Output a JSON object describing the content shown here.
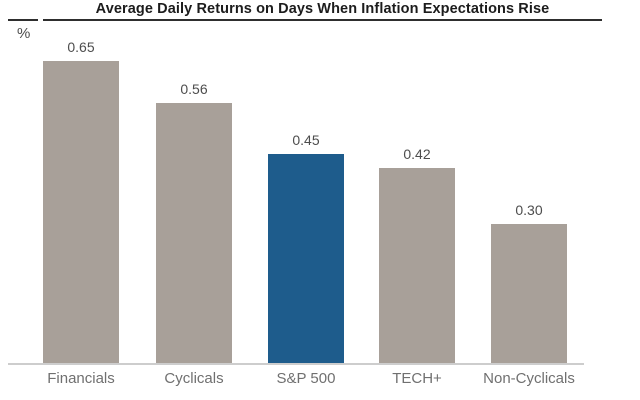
{
  "header": {
    "title": "Average Daily Returns on Days When Inflation Expectations Rise"
  },
  "axis": {
    "unit_label": "%"
  },
  "colors": {
    "background": "#ffffff",
    "bar_default": "#a8a099",
    "bar_highlight": "#1e5c8c",
    "title_text": "#1c1c1c",
    "title_rule": "#2e2e2e",
    "baseline": "#cdcdcd",
    "value_label": "#4d4d4d",
    "category_label": "#707070"
  },
  "chart_data": {
    "type": "bar",
    "title": "Average Daily Returns on Days When Inflation Expectations Rise",
    "categories": [
      "Financials",
      "Cyclicals",
      "S&P 500",
      "TECH+",
      "Non-Cyclicals"
    ],
    "values": [
      0.65,
      0.56,
      0.45,
      0.42,
      0.3
    ],
    "value_labels": [
      "0.65",
      "0.56",
      "0.45",
      "0.42",
      "0.30"
    ],
    "xlabel": "",
    "ylabel": "%",
    "ylim": [
      0,
      0.7
    ],
    "grid": false,
    "legend": false,
    "highlight_index": 2,
    "highlight_category": "S&P 500",
    "bar_colors": [
      "#a8a099",
      "#a8a099",
      "#1e5c8c",
      "#a8a099",
      "#a8a099"
    ]
  }
}
